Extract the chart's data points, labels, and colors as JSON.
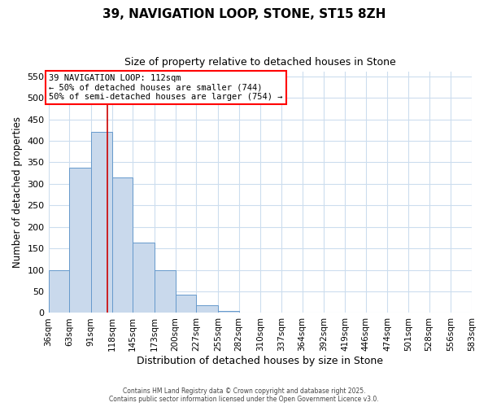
{
  "title": "39, NAVIGATION LOOP, STONE, ST15 8ZH",
  "subtitle": "Size of property relative to detached houses in Stone",
  "xlabel": "Distribution of detached houses by size in Stone",
  "ylabel": "Number of detached properties",
  "bar_color": "#c9d9ec",
  "bar_edge_color": "#6699cc",
  "background_color": "#ffffff",
  "grid_color": "#ccddee",
  "bin_edges": [
    36,
    63,
    91,
    118,
    145,
    173,
    200,
    227,
    255,
    282,
    310,
    337,
    364,
    392,
    419,
    446,
    474,
    501,
    528,
    556,
    583
  ],
  "bin_labels": [
    "36sqm",
    "63sqm",
    "91sqm",
    "118sqm",
    "145sqm",
    "173sqm",
    "200sqm",
    "227sqm",
    "255sqm",
    "282sqm",
    "310sqm",
    "337sqm",
    "364sqm",
    "392sqm",
    "419sqm",
    "446sqm",
    "474sqm",
    "501sqm",
    "528sqm",
    "556sqm",
    "583sqm"
  ],
  "bar_heights": [
    99,
    338,
    420,
    314,
    163,
    99,
    43,
    17,
    4,
    0,
    0,
    0,
    0,
    0,
    0,
    0,
    0,
    0,
    0,
    0
  ],
  "ylim": [
    0,
    560
  ],
  "yticks": [
    0,
    50,
    100,
    150,
    200,
    250,
    300,
    350,
    400,
    450,
    500,
    550
  ],
  "vline_x": 112,
  "vline_color": "#cc0000",
  "annotation_title": "39 NAVIGATION LOOP: 112sqm",
  "annotation_line1": "← 50% of detached houses are smaller (744)",
  "annotation_line2": "50% of semi-detached houses are larger (754) →",
  "footer1": "Contains HM Land Registry data © Crown copyright and database right 2025.",
  "footer2": "Contains public sector information licensed under the Open Government Licence v3.0."
}
